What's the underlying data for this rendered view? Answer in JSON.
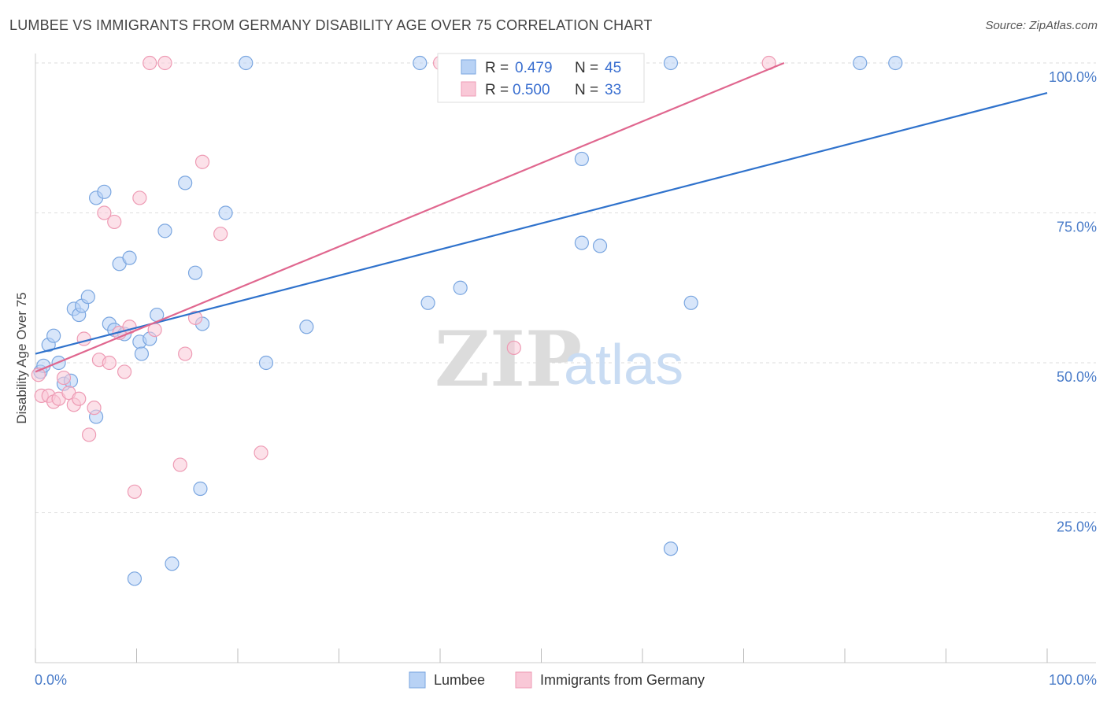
{
  "header": {
    "title": "LUMBEE VS IMMIGRANTS FROM GERMANY DISABILITY AGE OVER 75 CORRELATION CHART",
    "source": "Source: ZipAtlas.com"
  },
  "watermark": {
    "part1": "ZIP",
    "part2": "atlas"
  },
  "legend": {
    "r_label": "R =",
    "n_label": "N =",
    "items": [
      {
        "name": "Lumbee",
        "r": "0.479",
        "n": "45"
      },
      {
        "name": "Immigrants from Germany",
        "r": "0.500",
        "n": "33"
      }
    ]
  },
  "colors": {
    "lumbee_fill": "#b8d2f5",
    "lumbee_stroke": "#7aa6e0",
    "lumbee_line": "#2f72cc",
    "germany_fill": "#f9c8d7",
    "germany_stroke": "#ee9bb4",
    "germany_line": "#e0678f",
    "tick_text": "#4a7cc9",
    "grid": "#dddddd"
  },
  "chart_data": {
    "type": "scatter",
    "title": "LUMBEE VS IMMIGRANTS FROM GERMANY DISABILITY AGE OVER 75 CORRELATION CHART",
    "xlabel": "",
    "ylabel": "Disability Age Over 75",
    "xlim": [
      0,
      100
    ],
    "ylim": [
      0,
      100
    ],
    "x_tick_labels": [
      "0.0%",
      "100.0%"
    ],
    "y_ticks": [
      25,
      50,
      75,
      100
    ],
    "y_tick_labels": [
      "25.0%",
      "50.0%",
      "75.0%",
      "100.0%"
    ],
    "grid": true,
    "legend_position": "top-center",
    "series": [
      {
        "name": "Lumbee",
        "points": [
          [
            0.5,
            48.5
          ],
          [
            0.8,
            49.5
          ],
          [
            1.3,
            53
          ],
          [
            1.8,
            54.5
          ],
          [
            2.3,
            50
          ],
          [
            2.8,
            46.5
          ],
          [
            3.5,
            47
          ],
          [
            3.8,
            59
          ],
          [
            4.3,
            58
          ],
          [
            4.6,
            59.5
          ],
          [
            5.2,
            61
          ],
          [
            6.0,
            41
          ],
          [
            6.0,
            77.5
          ],
          [
            6.8,
            78.5
          ],
          [
            7.3,
            56.5
          ],
          [
            7.8,
            55.5
          ],
          [
            8.3,
            66.5
          ],
          [
            8.8,
            54.8
          ],
          [
            9.3,
            67.5
          ],
          [
            9.8,
            14
          ],
          [
            10.3,
            53.5
          ],
          [
            10.5,
            51.5
          ],
          [
            11.3,
            54
          ],
          [
            12.0,
            58
          ],
          [
            12.8,
            72
          ],
          [
            13.5,
            16.5
          ],
          [
            14.8,
            80
          ],
          [
            15.8,
            65
          ],
          [
            16.3,
            29
          ],
          [
            16.5,
            56.5
          ],
          [
            18.8,
            75
          ],
          [
            20.8,
            100
          ],
          [
            22.8,
            50
          ],
          [
            26.8,
            56
          ],
          [
            38.0,
            100
          ],
          [
            38.8,
            60
          ],
          [
            42.0,
            62.5
          ],
          [
            54.0,
            84
          ],
          [
            54.0,
            70
          ],
          [
            55.8,
            69.5
          ],
          [
            62.8,
            19
          ],
          [
            62.8,
            100
          ],
          [
            64.8,
            60
          ],
          [
            81.5,
            100
          ],
          [
            85.0,
            100
          ]
        ]
      },
      {
        "name": "Immigrants from Germany",
        "points": [
          [
            0.3,
            48
          ],
          [
            0.6,
            44.5
          ],
          [
            1.3,
            44.5
          ],
          [
            1.8,
            43.5
          ],
          [
            2.3,
            44
          ],
          [
            2.8,
            47.5
          ],
          [
            3.3,
            45
          ],
          [
            3.8,
            43
          ],
          [
            4.3,
            44
          ],
          [
            4.8,
            54
          ],
          [
            5.3,
            38
          ],
          [
            5.8,
            42.5
          ],
          [
            6.3,
            50.5
          ],
          [
            6.8,
            75
          ],
          [
            7.3,
            50
          ],
          [
            7.8,
            73.5
          ],
          [
            8.3,
            55
          ],
          [
            8.8,
            48.5
          ],
          [
            9.3,
            56
          ],
          [
            9.8,
            28.5
          ],
          [
            10.3,
            77.5
          ],
          [
            11.3,
            100
          ],
          [
            11.8,
            55.5
          ],
          [
            12.8,
            100
          ],
          [
            14.3,
            33
          ],
          [
            14.8,
            51.5
          ],
          [
            15.8,
            57.5
          ],
          [
            16.5,
            83.5
          ],
          [
            18.3,
            71.5
          ],
          [
            22.3,
            35
          ],
          [
            40.0,
            100
          ],
          [
            47.3,
            52.5
          ],
          [
            72.5,
            100
          ]
        ]
      }
    ],
    "trendlines": [
      {
        "name": "Lumbee",
        "x": [
          0,
          100
        ],
        "y": [
          51.5,
          95
        ]
      },
      {
        "name": "Immigrants from Germany",
        "x": [
          0,
          74
        ],
        "y": [
          48.5,
          100
        ]
      }
    ]
  }
}
